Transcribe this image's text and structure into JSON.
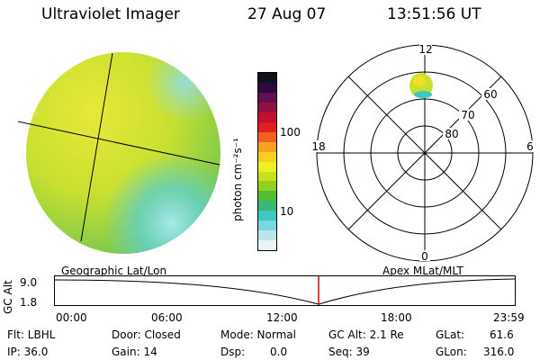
{
  "header": {
    "instrument": "Ultraviolet Imager",
    "date": "27 Aug 07",
    "time": "13:51:56 UT"
  },
  "colorbar": {
    "label": "photon cm⁻²s⁻¹",
    "ticks": [
      "100",
      "10"
    ],
    "colors": [
      "#e8f4f8",
      "#b8e6ea",
      "#78d8e0",
      "#40c8c0",
      "#38b878",
      "#50c030",
      "#90d020",
      "#c8e020",
      "#f0f020",
      "#f8d020",
      "#f8a020",
      "#f06020",
      "#e02020",
      "#c01030",
      "#901040",
      "#601050",
      "#300840",
      "#101020"
    ]
  },
  "polar_plot": {
    "mlt_labels": [
      "12",
      "18",
      "6",
      "0"
    ],
    "lat_labels": [
      "60",
      "70",
      "80"
    ]
  },
  "timeline": {
    "left_label": "Geographic Lat/Lon",
    "right_label": "Apex MLat/MLT",
    "axis_title": "GC Alt",
    "y_ticks": [
      "9.0",
      "1.8"
    ],
    "x_ticks": [
      "00:00",
      "06:00",
      "12:00",
      "18:00",
      "23:59"
    ]
  },
  "info": {
    "flt": "Flt: LBHL",
    "ip": "IP: 36.0",
    "door": "Door: Closed",
    "gain": "Gain: 14",
    "mode": "Mode: Normal",
    "dsp_label": "Dsp:",
    "dsp_value": "0.0",
    "gcalt": "GC Alt: 2.1 Re",
    "seq": "Seq: 39",
    "glat_label": "GLat:",
    "glat_value": "61.6",
    "glon_label": "GLon:",
    "glon_value": "316.0"
  }
}
